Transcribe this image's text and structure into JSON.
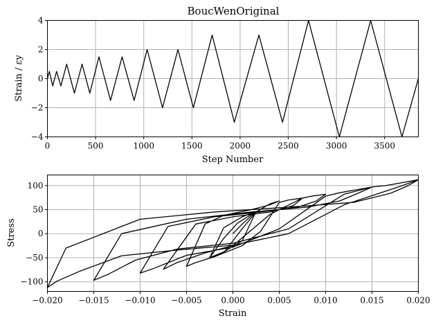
{
  "chart_data": [
    {
      "type": "line",
      "title": "BoucWenOriginal",
      "xlabel": "Step Number",
      "ylabel": "Strain / εy",
      "xlim": [
        0,
        3850
      ],
      "ylim": [
        -4,
        4
      ],
      "xticks": [
        0,
        500,
        1000,
        1500,
        2000,
        2500,
        3000,
        3500
      ],
      "yticks": [
        -4,
        -2,
        0,
        2,
        4
      ],
      "grid": true,
      "series": [
        {
          "x": [
            0,
            20,
            55,
            95,
            140,
            200,
            280,
            360,
            440,
            535,
            655,
            775,
            900,
            1035,
            1195,
            1355,
            1515,
            1710,
            1940,
            2195,
            2440,
            2710,
            3030,
            3355,
            3680,
            3850
          ],
          "values": [
            0,
            0.5,
            -0.5,
            0.5,
            -0.5,
            1,
            -1,
            1,
            -1,
            1.5,
            -1.5,
            1.5,
            -1.5,
            2,
            -2,
            2,
            -2,
            3,
            -3,
            3,
            -3,
            4,
            -4,
            4,
            -4,
            0
          ]
        }
      ]
    },
    {
      "type": "line",
      "title": "",
      "xlabel": "Strain",
      "ylabel": "Stress",
      "xlim": [
        -0.02,
        0.02
      ],
      "ylim": [
        -120,
        122
      ],
      "xticks": [
        -0.02,
        -0.015,
        -0.01,
        -0.005,
        0,
        0.005,
        0.01,
        0.015,
        0.02
      ],
      "xtick_labels": [
        "−0.020",
        "−0.015",
        "−0.010",
        "−0.005",
        "0.000",
        "0.005",
        "0.010",
        "0.015",
        "0.020"
      ],
      "yticks": [
        -100,
        -50,
        0,
        50,
        100
      ],
      "ytick_labels": [
        "−100",
        "−50",
        "0",
        "50",
        "100"
      ],
      "grid": true,
      "series": [
        {
          "x": [
            0,
            0.001,
            0.0025,
            0.001,
            -0.001,
            -0.0025,
            -0.001,
            0.001,
            0.0025,
            0.002,
            0.0005,
            -0.001,
            -0.0025,
            -0.001,
            0.001,
            0.0025,
            0.004,
            0.005,
            0.004,
            0.002,
            -0.001,
            -0.003,
            -0.005,
            -0.004,
            -0.002,
            0.001,
            0.003,
            0.005,
            0.006,
            0.0075,
            0.0065,
            0.004,
            0.0,
            -0.004,
            -0.0075,
            -0.006,
            -0.003,
            0.0,
            0.004,
            0.0075,
            0.0085,
            0.01,
            0.009,
            0.007,
            0.003,
            -0.002,
            -0.007,
            -0.01,
            -0.0085,
            -0.005,
            0.0,
            0.005,
            0.01,
            0.0115,
            0.015,
            0.0135,
            0.0115,
            0.008,
            0.002,
            -0.005,
            -0.012,
            -0.015,
            -0.0135,
            -0.0105,
            -0.006,
            0.0,
            0.006,
            0.012,
            0.015,
            0.0165,
            0.02,
            0.0187,
            0.017,
            0.013,
            0.006,
            -0.002,
            -0.01,
            -0.018,
            -0.02,
            -0.019,
            -0.0165,
            -0.012,
            -0.006,
            0.0,
            0.006,
            0.012,
            0.018,
            0.02
          ],
          "values": [
            0,
            20,
            46,
            35,
            12,
            -50,
            -38,
            -15,
            46,
            40,
            22,
            -10,
            -50,
            -40,
            10,
            45,
            62,
            68,
            60,
            50,
            38,
            20,
            -68,
            -60,
            -48,
            -25,
            5,
            65,
            70,
            74,
            58,
            45,
            35,
            20,
            -74,
            -60,
            -40,
            -25,
            40,
            74,
            78,
            82,
            68,
            55,
            45,
            35,
            15,
            -82,
            -72,
            -45,
            -28,
            10,
            78,
            85,
            97,
            84,
            68,
            55,
            45,
            30,
            0,
            -97,
            -85,
            -55,
            -32,
            -20,
            10,
            82,
            97,
            100,
            112,
            98,
            84,
            65,
            55,
            45,
            30,
            -30,
            -112,
            -99,
            -78,
            -46,
            -34,
            -24,
            0,
            60,
            98,
            112
          ]
        }
      ]
    }
  ]
}
